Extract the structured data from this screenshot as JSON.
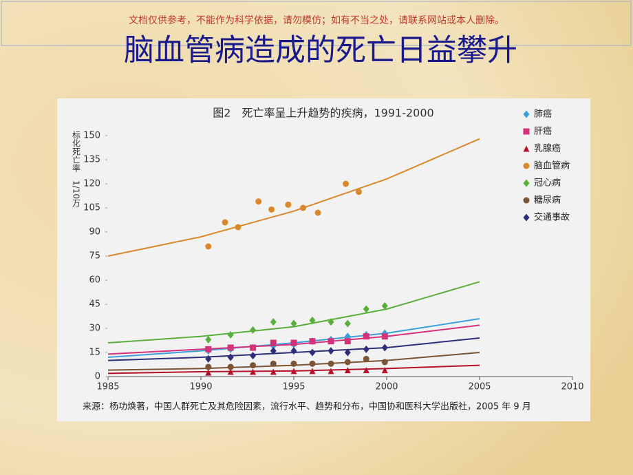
{
  "watermark": "文档仅供参考，不能作为科学依据，请勿模仿；如有不当之处，请联系网站或本人删除。",
  "slide_title": "脑血管病造成的死亡日益攀升",
  "chart_data": {
    "type": "scatter",
    "title": "图2　死亡率呈上升趋势的疾病，1991-2000",
    "y_label": "标化死亡率　1/10万",
    "source": "来源：杨功焕著，中国人群死亡及其危险因素，流行水平、趋势和分布，中国协和医科大学出版社，2005 年 9 月",
    "xlim": [
      1985,
      2010
    ],
    "xticks": [
      1985,
      1990,
      1995,
      2000,
      2005,
      2010
    ],
    "ylim": [
      0,
      150
    ],
    "yticks": [
      0,
      15,
      30,
      45,
      60,
      75,
      90,
      105,
      120,
      135,
      150
    ],
    "legend": "upper right",
    "series": [
      {
        "name": "肺癌",
        "color": "#3aa0dc",
        "marker": "diamond",
        "x": [
          1990.4,
          1991.6,
          1992.8,
          1993.9,
          1995,
          1996,
          1997,
          1997.9,
          1998.9,
          1999.9
        ],
        "values": [
          16,
          17,
          18,
          19,
          20,
          22,
          23,
          25,
          26,
          27
        ],
        "trend_x": [
          1985,
          1990,
          1995,
          2000,
          2005
        ],
        "trend_values": [
          12,
          16,
          21,
          27,
          36
        ]
      },
      {
        "name": "肝癌",
        "color": "#d4317a",
        "marker": "square",
        "x": [
          1990.4,
          1991.6,
          1992.8,
          1993.9,
          1995,
          1996,
          1997,
          1997.9,
          1998.9,
          1999.9
        ],
        "values": [
          17,
          18,
          18,
          21,
          21,
          22,
          22,
          22,
          25,
          25
        ],
        "trend_x": [
          1985,
          1990,
          1995,
          2000,
          2005
        ],
        "trend_values": [
          14,
          17,
          20,
          25,
          32
        ]
      },
      {
        "name": "乳腺癌",
        "color": "#b5122a",
        "marker": "triangle",
        "x": [
          1990.4,
          1991.6,
          1992.8,
          1993.9,
          1995,
          1996,
          1997,
          1997.9,
          1998.9,
          1999.9
        ],
        "values": [
          2.5,
          3,
          3,
          3,
          3.5,
          3.5,
          3.5,
          4,
          4,
          4
        ],
        "trend_x": [
          1985,
          1990,
          1995,
          2000,
          2005
        ],
        "trend_values": [
          2,
          3,
          3.5,
          5,
          7
        ]
      },
      {
        "name": "脑血管病",
        "color": "#d9882b",
        "marker": "circle",
        "x": [
          1990.4,
          1991.3,
          1992,
          1993.1,
          1993.8,
          1994.7,
          1995.5,
          1996.3,
          1997.8,
          1998.5
        ],
        "values": [
          81,
          96,
          93,
          109,
          104,
          107,
          105,
          102,
          120,
          115
        ],
        "trend_x": [
          1985,
          1990,
          1995,
          2000,
          2005
        ],
        "trend_values": [
          75,
          87,
          103,
          123,
          148
        ]
      },
      {
        "name": "冠心病",
        "color": "#5aae3c",
        "marker": "diamond",
        "x": [
          1990.4,
          1991.6,
          1992.8,
          1993.9,
          1995,
          1996,
          1997,
          1997.9,
          1998.9,
          1999.9
        ],
        "values": [
          23,
          26,
          29,
          34,
          33,
          35,
          34,
          33,
          42,
          44
        ],
        "trend_x": [
          1985,
          1990,
          1995,
          2000,
          2005
        ],
        "trend_values": [
          21,
          25,
          31,
          42,
          59
        ]
      },
      {
        "name": "糖尿病",
        "color": "#7a5434",
        "marker": "circle",
        "x": [
          1990.4,
          1991.6,
          1992.8,
          1993.9,
          1995,
          1996,
          1997,
          1997.9,
          1998.9,
          1999.9
        ],
        "values": [
          6,
          6,
          7,
          8,
          8,
          8,
          8,
          9,
          11,
          9
        ],
        "trend_x": [
          1985,
          1990,
          1995,
          2000,
          2005
        ],
        "trend_values": [
          4,
          5,
          7,
          10,
          15
        ]
      },
      {
        "name": "交通事故",
        "color": "#2e2f7a",
        "marker": "diamond",
        "x": [
          1990.4,
          1991.6,
          1992.8,
          1993.9,
          1995,
          1996,
          1997,
          1997.9,
          1998.9,
          1999.9
        ],
        "values": [
          11,
          12,
          13,
          16,
          16,
          15,
          16,
          15,
          17,
          18
        ],
        "trend_x": [
          1985,
          1990,
          1995,
          2000,
          2005
        ],
        "trend_values": [
          10,
          12,
          15,
          18,
          24
        ]
      }
    ]
  }
}
